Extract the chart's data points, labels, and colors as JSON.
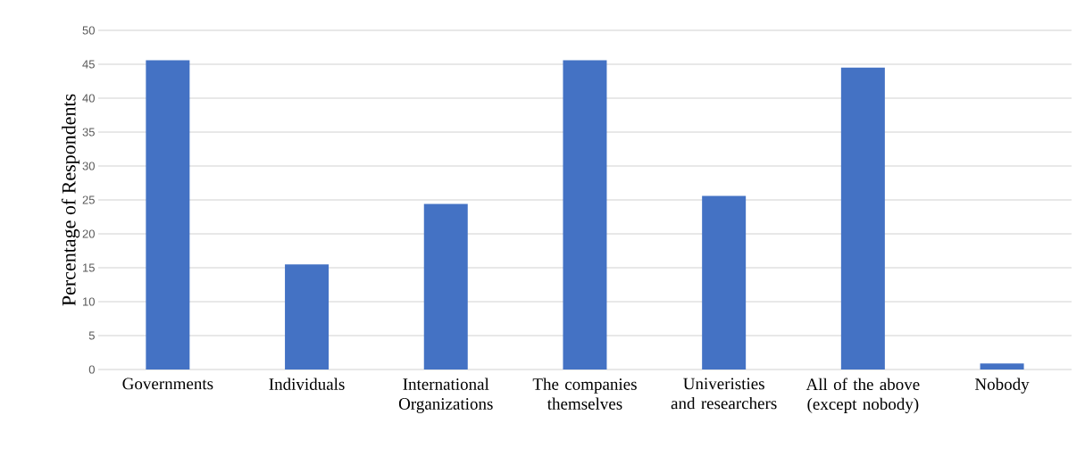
{
  "chart_data": {
    "type": "bar",
    "ylabel": "Percentage of Respondents",
    "categories": [
      "Governments",
      "Individuals",
      "International Organizations",
      "The companies themselves",
      "Univeristies and researchers",
      "All of the above (except nobody)",
      "Nobody"
    ],
    "values": [
      45.6,
      15.5,
      24.4,
      45.6,
      25.6,
      44.5,
      0.9
    ],
    "color": "#4472c4",
    "ylim": [
      0,
      50
    ],
    "yticks": [
      0,
      5,
      10,
      15,
      20,
      25,
      30,
      35,
      40,
      45,
      50
    ],
    "grid": "y"
  }
}
